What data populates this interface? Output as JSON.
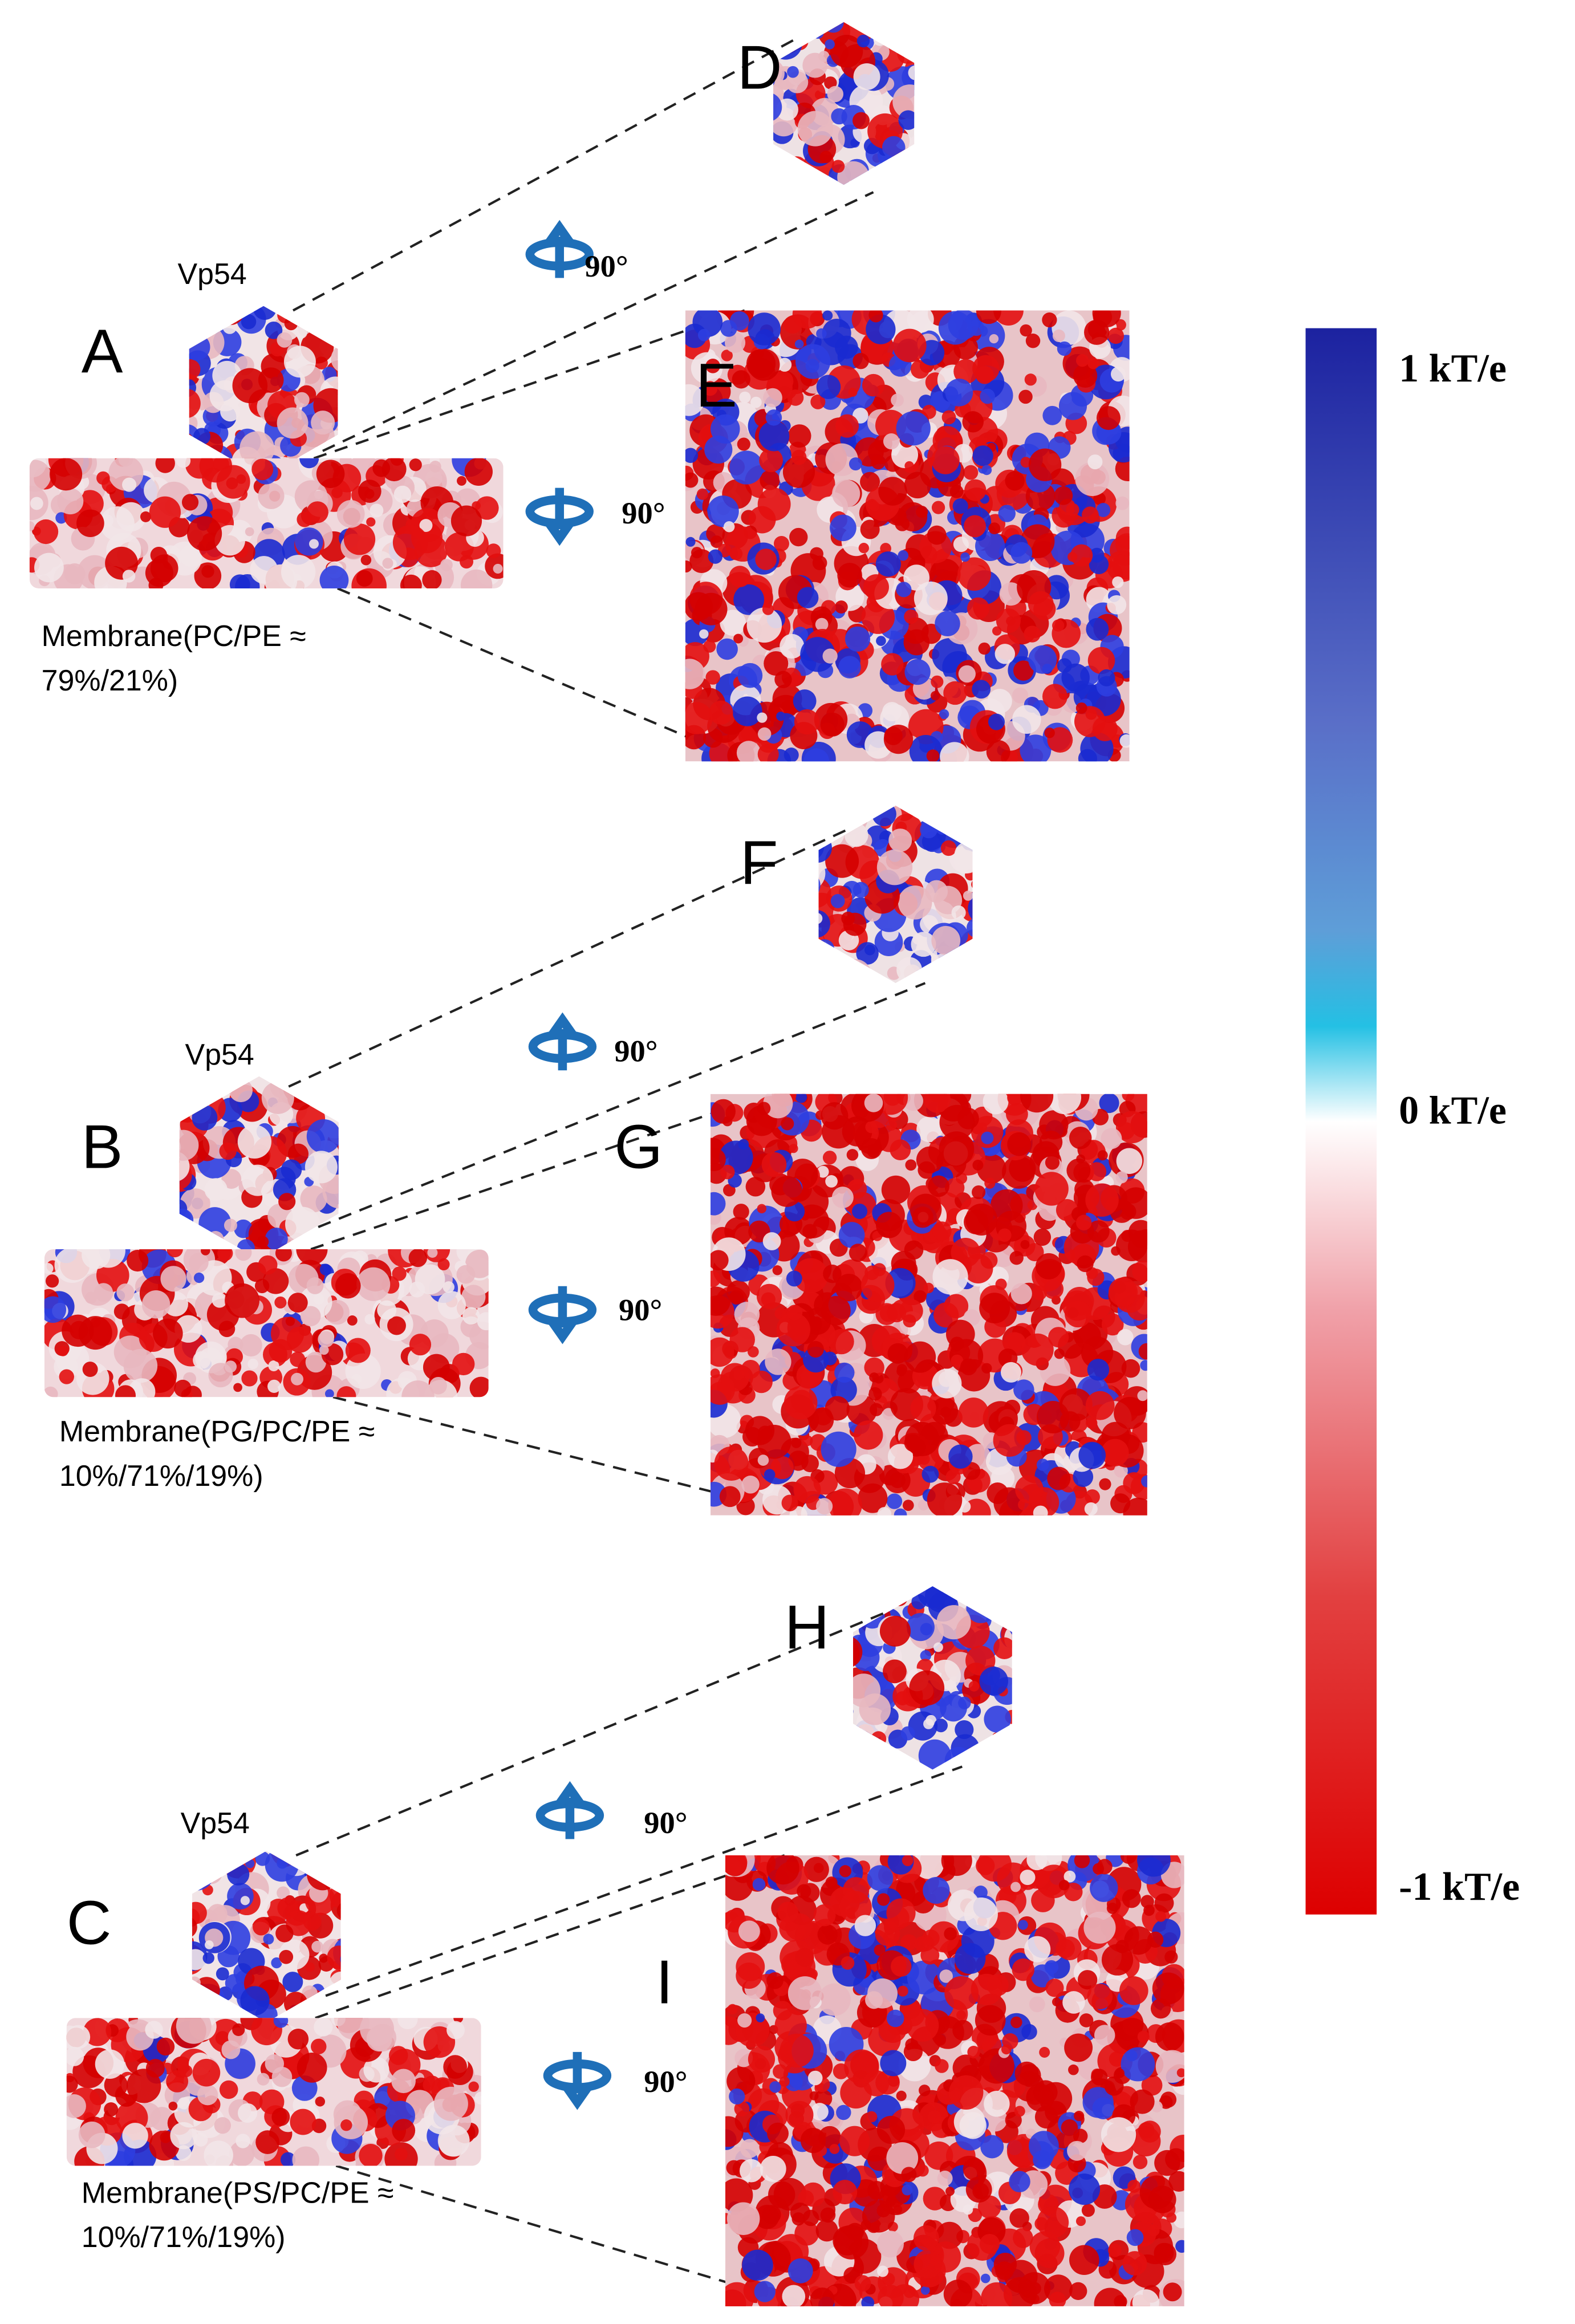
{
  "left_panels": [
    {
      "label": "A",
      "protein": "Vp54",
      "membrane": [
        "Membrane(PC/PE ≈",
        "79%/21%)"
      ]
    },
    {
      "label": "B",
      "protein": "Vp54",
      "membrane": [
        "Membrane(PG/PC/PE ≈",
        "10%/71%/19%)"
      ]
    },
    {
      "label": "C",
      "protein": "Vp54",
      "membrane": [
        "Membrane(PS/PC/PE ≈",
        "10%/71%/19%)"
      ]
    }
  ],
  "right_panels": [
    {
      "label": "D"
    },
    {
      "label": "E"
    },
    {
      "label": "F"
    },
    {
      "label": "G"
    },
    {
      "label": "H"
    },
    {
      "label": "I"
    }
  ],
  "rotations": [
    "90°",
    "90°",
    "90°",
    "90°",
    "90°",
    "90°"
  ],
  "colorbar": {
    "labels": [
      "1 kT/e",
      "0 kT/e",
      "-1 kT/e"
    ]
  }
}
